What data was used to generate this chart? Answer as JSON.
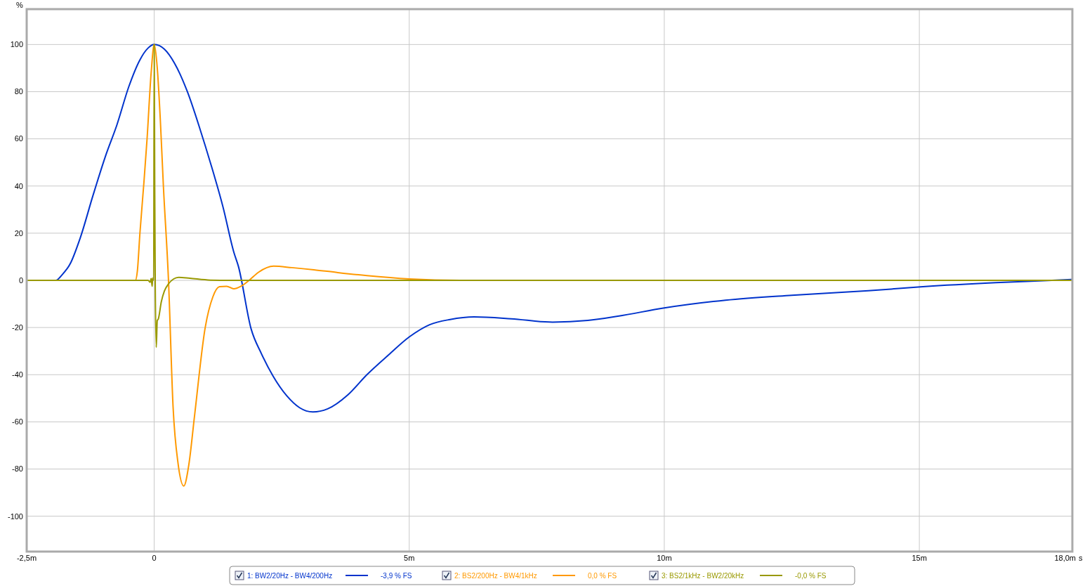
{
  "chart_data": {
    "type": "line",
    "xlabel": "s",
    "ylabel": "%",
    "xlim": [
      -2.5,
      18
    ],
    "ylim": [
      -115,
      115
    ],
    "xticks": [
      {
        "value": -2.5,
        "label": "-2,5m"
      },
      0,
      {
        "value": 5,
        "label": "5m"
      },
      {
        "value": 10,
        "label": "10m"
      },
      {
        "value": 15,
        "label": "15m"
      },
      {
        "value": 18,
        "label": "18,0m"
      }
    ],
    "yticks": [
      -100,
      -80,
      -60,
      -40,
      -20,
      0,
      20,
      40,
      60,
      80,
      100
    ],
    "grid": true,
    "legend": "bottom",
    "line_style": "solid",
    "marker": "none",
    "annotations": [
      "-3,9 % FS",
      "0,0 % FS",
      "-0,0 % FS"
    ],
    "series": [
      {
        "name": "1: BW2/20Hz - BW4/200Hz",
        "color": "#0033cc",
        "x": [
          -2.5,
          -2.0,
          -1.93,
          -1.8,
          -1.65,
          -1.45,
          -1.2,
          -0.95,
          -0.73,
          -0.5,
          -0.28,
          -0.12,
          0,
          0.2,
          0.4,
          0.65,
          0.9,
          1.1,
          1.35,
          1.56,
          1.65,
          1.9,
          2.1,
          2.33,
          2.6,
          2.85,
          3.11,
          3.4,
          3.8,
          4.17,
          4.6,
          5.0,
          5.4,
          5.8,
          6.27,
          7.0,
          7.81,
          8.5,
          9.09,
          10,
          11.2,
          12.5,
          14,
          15.07,
          16.5,
          17.6,
          18
        ],
        "values": [
          0,
          0,
          0,
          2.5,
          6.9,
          18,
          36,
          53,
          66,
          82,
          93.5,
          98.5,
          100,
          98,
          92,
          80,
          64,
          50,
          31,
          12,
          6,
          -20.6,
          -31,
          -40.6,
          -49,
          -54,
          -55.8,
          -54.5,
          -48.5,
          -40,
          -31.5,
          -24,
          -18.8,
          -16.6,
          -15.5,
          -16.3,
          -17.7,
          -17,
          -15.2,
          -11.7,
          -8.4,
          -6.3,
          -4.4,
          -2.7,
          -1,
          0,
          0.4
        ]
      },
      {
        "name": "2: BS2/200Hz - BW4/1kHz",
        "color": "#ff9900",
        "x": [
          -2.5,
          -0.37,
          -0.33,
          -0.28,
          -0.2,
          -0.14,
          -0.06,
          0,
          0.06,
          0.12,
          0.18,
          0.28,
          0.37,
          0.47,
          0.58,
          0.68,
          0.79,
          1.0,
          1.15,
          1.28,
          1.42,
          1.56,
          1.7,
          1.86,
          2.05,
          2.34,
          2.7,
          3.13,
          3.6,
          4.17,
          5.0,
          6.0,
          18
        ],
        "values": [
          0,
          0,
          4,
          20,
          42,
          60,
          88,
          100,
          90,
          68,
          40,
          0,
          -53.7,
          -78,
          -87.2,
          -78,
          -57.6,
          -20,
          -7,
          -2.7,
          -2.5,
          -3.6,
          -2.5,
          0,
          3.5,
          6,
          5.4,
          4.5,
          3.3,
          2,
          0.6,
          0,
          0
        ]
      },
      {
        "name": "3: BS2/1kHz  - BW2/20kHz",
        "color": "#999900",
        "x": [
          -2.5,
          -0.12,
          -0.08,
          -0.06,
          -0.04,
          -0.03,
          -0.01,
          0,
          0.01,
          0.02,
          0.04,
          0.06,
          0.08,
          0.14,
          0.2,
          0.28,
          0.38,
          0.48,
          0.7,
          1.1,
          1.5,
          18
        ],
        "values": [
          0,
          0,
          -0.8,
          0.8,
          -2.5,
          1,
          0,
          100,
          40,
          0,
          -28.4,
          -17,
          -16.4,
          -9,
          -4.5,
          -1.5,
          0.6,
          1.3,
          0.9,
          0.1,
          0,
          0
        ]
      }
    ]
  }
}
